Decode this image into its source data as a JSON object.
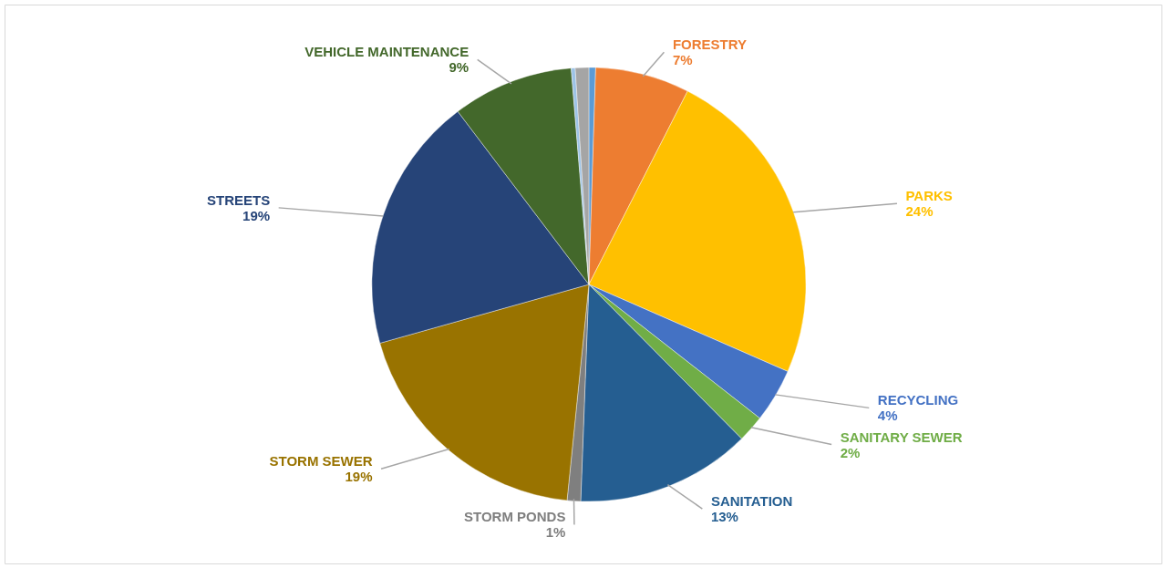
{
  "chart_data": {
    "type": "pie",
    "categories": [
      null,
      "FORESTRY",
      "PARKS",
      "RECYCLING",
      "SANITARY SEWER",
      "SANITATION",
      "STORM PONDS",
      "STORM SEWER",
      "STREETS",
      "VEHICLE MAINTENANCE",
      null,
      null
    ],
    "values": [
      0.5,
      7,
      24,
      4,
      2,
      13,
      1,
      19,
      19,
      9,
      0.3,
      1
    ],
    "value_labels": [
      null,
      "7%",
      "24%",
      "4%",
      "2%",
      "13%",
      "1%",
      "19%",
      "19%",
      "9%",
      null,
      null
    ],
    "colors": [
      "#5b9bd5",
      "#ed7d31",
      "#ffc000",
      "#4472c4",
      "#70ad47",
      "#255e91",
      "#7f7f7f",
      "#997300",
      "#264478",
      "#43682b",
      "#9dc3e6",
      "#a5a5a5"
    ]
  }
}
